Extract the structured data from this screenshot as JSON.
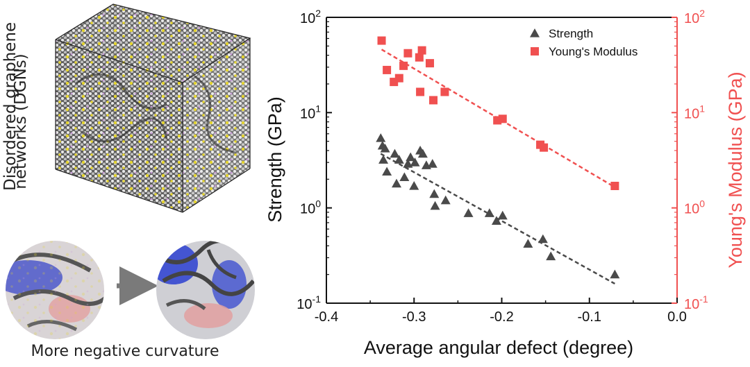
{
  "illustration": {
    "box_label_line1": "Disordered graphene",
    "box_label_line2": "networks (DGNs)",
    "caption": "More negative curvature"
  },
  "chart_data": {
    "type": "scatter",
    "xlabel": "Average angular defect (degree)",
    "ylabel": "Strength (GPa)",
    "y2label": "Young's Modulus (GPa)",
    "xlim": [
      -0.4,
      0.0
    ],
    "xticks": [
      "-0.4",
      "-0.3",
      "-0.2",
      "-0.1",
      "0.0"
    ],
    "ylim": [
      0.1,
      100
    ],
    "y2lim": [
      0.1,
      100
    ],
    "yscale": "log",
    "yticks": [
      {
        "base": "10",
        "exp": "-1"
      },
      {
        "base": "10",
        "exp": "0"
      },
      {
        "base": "10",
        "exp": "1"
      },
      {
        "base": "10",
        "exp": "2"
      }
    ],
    "legend_position": "top-right",
    "grid": false,
    "series": [
      {
        "name": "Strength",
        "axis": "left",
        "marker": "triangle",
        "color": "#4a4a4a",
        "points": [
          [
            -0.338,
            5.4
          ],
          [
            -0.336,
            4.5
          ],
          [
            -0.333,
            4.2
          ],
          [
            -0.335,
            3.2
          ],
          [
            -0.331,
            2.4
          ],
          [
            -0.322,
            3.7
          ],
          [
            -0.317,
            3.2
          ],
          [
            -0.307,
            2.9
          ],
          [
            -0.304,
            3.4
          ],
          [
            -0.299,
            3.0
          ],
          [
            -0.293,
            4.0
          ],
          [
            -0.29,
            3.7
          ],
          [
            -0.286,
            2.8
          ],
          [
            -0.279,
            2.9
          ],
          [
            -0.32,
            1.8
          ],
          [
            -0.311,
            2.1
          ],
          [
            -0.3,
            1.7
          ],
          [
            -0.277,
            1.4
          ],
          [
            -0.264,
            1.2
          ],
          [
            -0.276,
            1.05
          ],
          [
            -0.238,
            0.88
          ],
          [
            -0.214,
            0.88
          ],
          [
            -0.206,
            0.73
          ],
          [
            -0.199,
            0.83
          ],
          [
            -0.17,
            0.42
          ],
          [
            -0.153,
            0.47
          ],
          [
            -0.144,
            0.31
          ],
          [
            -0.071,
            0.2
          ]
        ],
        "fit": [
          [
            -0.338,
            3.7
          ],
          [
            -0.071,
            0.16
          ]
        ]
      },
      {
        "name": "Young's Modulus",
        "axis": "right",
        "marker": "square",
        "color": "#f05050",
        "points": [
          [
            -0.337,
            57
          ],
          [
            -0.331,
            28
          ],
          [
            -0.323,
            21
          ],
          [
            -0.317,
            23
          ],
          [
            -0.312,
            31
          ],
          [
            -0.307,
            42
          ],
          [
            -0.294,
            38
          ],
          [
            -0.291,
            45
          ],
          [
            -0.282,
            33
          ],
          [
            -0.293,
            16.5
          ],
          [
            -0.278,
            13.5
          ],
          [
            -0.265,
            16.5
          ],
          [
            -0.205,
            8.3
          ],
          [
            -0.199,
            8.6
          ],
          [
            -0.156,
            4.6
          ],
          [
            -0.152,
            4.3
          ],
          [
            -0.071,
            1.7
          ]
        ],
        "fit": [
          [
            -0.337,
            46
          ],
          [
            -0.071,
            1.65
          ]
        ]
      }
    ]
  }
}
